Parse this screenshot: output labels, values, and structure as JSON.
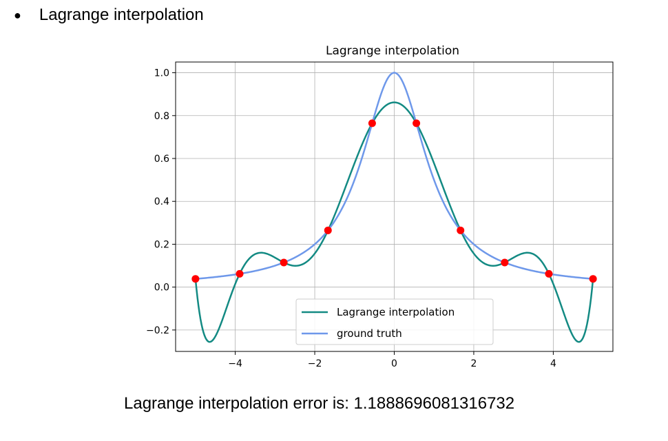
{
  "bullet": {
    "symbol": "●",
    "text": "Lagrange interpolation"
  },
  "result": {
    "text": "Lagrange interpolation error is: 1.1888696081316732"
  },
  "chart_data": {
    "type": "line",
    "title": "Lagrange interpolation",
    "xlabel": "",
    "ylabel": "",
    "xlim": [
      -5.5,
      5.5
    ],
    "ylim": [
      -0.3,
      1.05
    ],
    "xticks": [
      -4,
      -2,
      0,
      2,
      4
    ],
    "xtick_labels": [
      "−4",
      "−2",
      "0",
      "2",
      "4"
    ],
    "yticks": [
      -0.2,
      0.0,
      0.2,
      0.4,
      0.6,
      0.8,
      1.0
    ],
    "ytick_labels": [
      "−0.2",
      "0.0",
      "0.2",
      "0.4",
      "0.6",
      "0.8",
      "1.0"
    ],
    "grid": true,
    "legend": "lower-center",
    "series": [
      {
        "name": "Lagrange interpolation",
        "color": "#138a83",
        "function": "degree-9 Lagrange polynomial through the 10 red nodes"
      },
      {
        "name": "ground truth",
        "color": "#6e98ea",
        "function": "1/(1+x^2)"
      }
    ],
    "points": {
      "color": "#ff0000",
      "x": [
        -5.0,
        -3.889,
        -2.778,
        -1.667,
        -0.556,
        0.556,
        1.667,
        2.778,
        3.889,
        5.0
      ],
      "y": [
        0.0385,
        0.062,
        0.1147,
        0.2647,
        0.7642,
        0.7642,
        0.2647,
        0.1147,
        0.062,
        0.0385
      ]
    }
  }
}
